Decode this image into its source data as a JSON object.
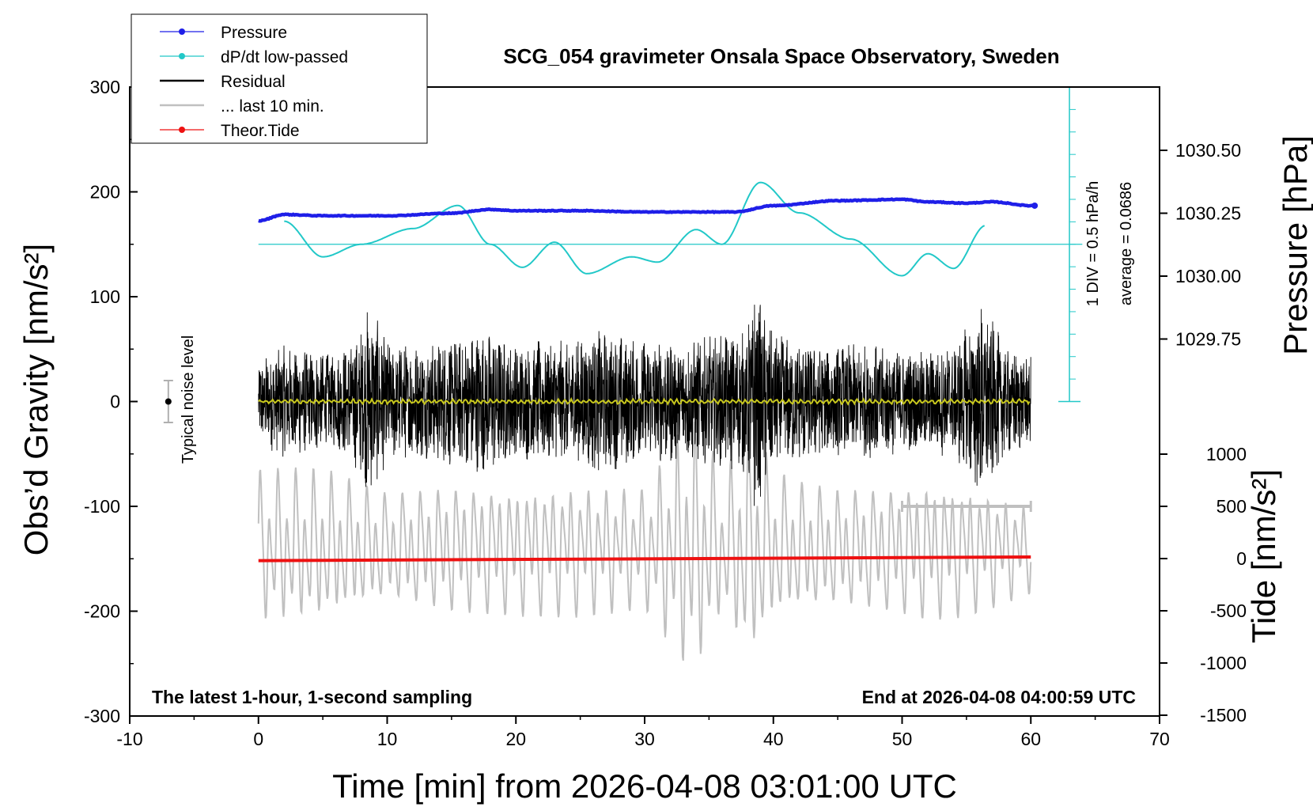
{
  "chart_data": {
    "type": "line",
    "title": "SCG_054 gravimeter Onsala Space Observatory, Sweden",
    "xlabel": "Time [min] from 2026-04-08 03:01:00 UTC",
    "ylabel_left": "Obs’d Gravity [nm/s²]",
    "ylabel_right_top": "Pressure [hPa]",
    "ylabel_right_bottom": "Tide [nm/s²]",
    "xlim": [
      -10,
      70
    ],
    "ylim": [
      -300,
      300
    ],
    "pressure_ylim": [
      1029.5,
      1030.75
    ],
    "tide_ylim": [
      -1500,
      1000
    ],
    "x_ticks": [
      "-10",
      "0",
      "10",
      "20",
      "30",
      "40",
      "50",
      "60",
      "70"
    ],
    "y_ticks": [
      "300",
      "200",
      "100",
      "0",
      "-100",
      "-200",
      "-300"
    ],
    "pressure_ticks": [
      "1030.50",
      "1030.25",
      "1030.00",
      "1029.75"
    ],
    "tide_ticks": [
      "1000",
      "500",
      "0",
      "-500",
      "-1000",
      "-1500"
    ],
    "bottom_left_note": "The latest 1-hour, 1-second sampling",
    "bottom_right_note": "End at 2026-04-08 04:00:59 UTC",
    "noise_label": "Typical noise level",
    "noise_level": 20,
    "dpdt_scale_label": "1 DIV = 0.5 hPa/h",
    "dpdt_average_label": "average = 0.0686",
    "last10_range": [
      50,
      60
    ],
    "legend": [
      {
        "label": "Pressure",
        "color": "#1f1fe8",
        "marker": true
      },
      {
        "label": "dP/dt low-passed",
        "color": "#22c8c8",
        "marker": true
      },
      {
        "label": "Residual",
        "color": "#000000",
        "marker": false
      },
      {
        "label": "... last 10 min.",
        "color": "#c0c0c0",
        "marker": false
      },
      {
        "label": "Theor.Tide",
        "color": "#ee1111",
        "marker": true
      }
    ],
    "legend_position": "top-left",
    "series": [
      {
        "name": "Pressure",
        "axis": "pressure",
        "color": "#1f1fe8",
        "x": [
          0,
          2,
          5,
          10,
          15,
          18,
          20,
          25,
          30,
          33,
          37,
          40,
          45,
          50,
          52,
          55,
          57,
          60
        ],
        "y": [
          1030.22,
          1030.245,
          1030.24,
          1030.24,
          1030.25,
          1030.265,
          1030.26,
          1030.26,
          1030.255,
          1030.255,
          1030.255,
          1030.28,
          1030.3,
          1030.305,
          1030.295,
          1030.29,
          1030.295,
          1030.28
        ]
      },
      {
        "name": "dP/dt low-passed",
        "axis": "gravity",
        "color": "#22c8c8",
        "x": [
          2,
          5,
          8,
          12,
          15.5,
          18,
          20.5,
          23,
          25.5,
          29,
          31,
          34,
          36,
          39,
          42,
          46,
          50,
          52,
          54,
          56.5
        ],
        "y": [
          172,
          138,
          150,
          165,
          187,
          150,
          128,
          152,
          122,
          138,
          133,
          164,
          150,
          209,
          180,
          155,
          120,
          141,
          127,
          168
        ]
      },
      {
        "name": "Theor.Tide",
        "axis": "tide",
        "color": "#ee1111",
        "x": [
          0,
          60
        ],
        "y": [
          -20,
          15
        ]
      }
    ],
    "baseline_dpdt": 150,
    "residual_envelope": {
      "x": [
        0,
        2,
        4,
        6,
        8,
        8.5,
        10,
        12,
        14,
        16,
        18,
        20,
        22,
        24,
        26,
        28,
        30,
        32,
        34,
        36,
        38,
        38.5,
        40,
        42,
        44,
        46,
        48,
        50,
        52,
        54,
        55.5,
        56,
        58,
        60
      ],
      "amp": [
        40,
        55,
        50,
        45,
        70,
        95,
        60,
        55,
        60,
        65,
        70,
        55,
        60,
        60,
        70,
        65,
        60,
        60,
        60,
        65,
        70,
        110,
        65,
        60,
        55,
        55,
        55,
        50,
        50,
        55,
        80,
        100,
        55,
        45
      ]
    },
    "last10_trace_envelope": {
      "x": [
        0,
        5,
        10,
        15,
        20,
        25,
        30,
        32,
        33.5,
        35,
        36,
        38,
        39,
        40,
        42,
        45,
        50,
        52,
        55,
        60
      ],
      "amp": [
        70,
        70,
        50,
        60,
        60,
        60,
        55,
        90,
        120,
        95,
        60,
        110,
        95,
        70,
        60,
        55,
        60,
        65,
        60,
        40
      ]
    }
  }
}
